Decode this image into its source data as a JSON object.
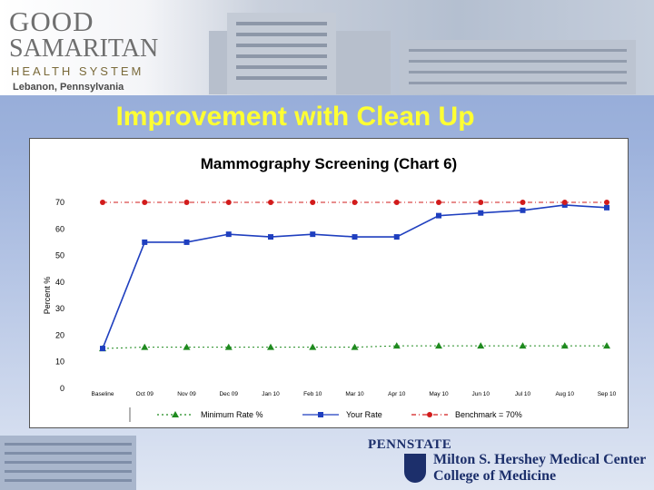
{
  "header": {
    "logo_good": "GOOD",
    "logo_samaritan": "SAMARITAN",
    "logo_health_system": "HEALTH SYSTEM",
    "logo_city": "Lebanon, Pennsylvania"
  },
  "slide_title": "Improvement with Clean Up",
  "footer": {
    "pennstate": "PENNSTATE",
    "hershey": "Milton S. Hershey Medical Center",
    "college": "College of Medicine"
  },
  "chart_data": {
    "type": "line",
    "title": "Mammography Screening (Chart 6)",
    "xlabel": "",
    "ylabel": "Percent %",
    "ylim": [
      0,
      70
    ],
    "yticks": [
      0,
      10,
      20,
      30,
      40,
      50,
      60,
      70
    ],
    "categories": [
      "Baseline",
      "Oct 09",
      "Nov 09",
      "Dec 09",
      "Jan 10",
      "Feb 10",
      "Mar 10",
      "Apr 10",
      "May 10",
      "Jun 10",
      "Jul 10",
      "Aug 10",
      "Sep 10"
    ],
    "series": [
      {
        "name": "Minimum Rate %",
        "color": "#1f8a1f",
        "marker": "triangle",
        "dash": "2,3",
        "values": [
          15,
          15.5,
          15.5,
          15.5,
          15.5,
          15.5,
          15.5,
          16,
          16,
          16,
          16,
          16,
          16
        ]
      },
      {
        "name": "Your Rate",
        "color": "#1f3fbf",
        "marker": "square",
        "dash": "",
        "values": [
          15,
          55,
          55,
          58,
          57,
          58,
          57,
          57,
          65,
          66,
          67,
          69,
          68
        ]
      },
      {
        "name": "Benchmark = 70%",
        "color": "#d21b1b",
        "marker": "circle",
        "dash": "5,3,1,3",
        "values": [
          70,
          70,
          70,
          70,
          70,
          70,
          70,
          70,
          70,
          70,
          70,
          70,
          70
        ]
      }
    ],
    "legend_position": "bottom"
  }
}
